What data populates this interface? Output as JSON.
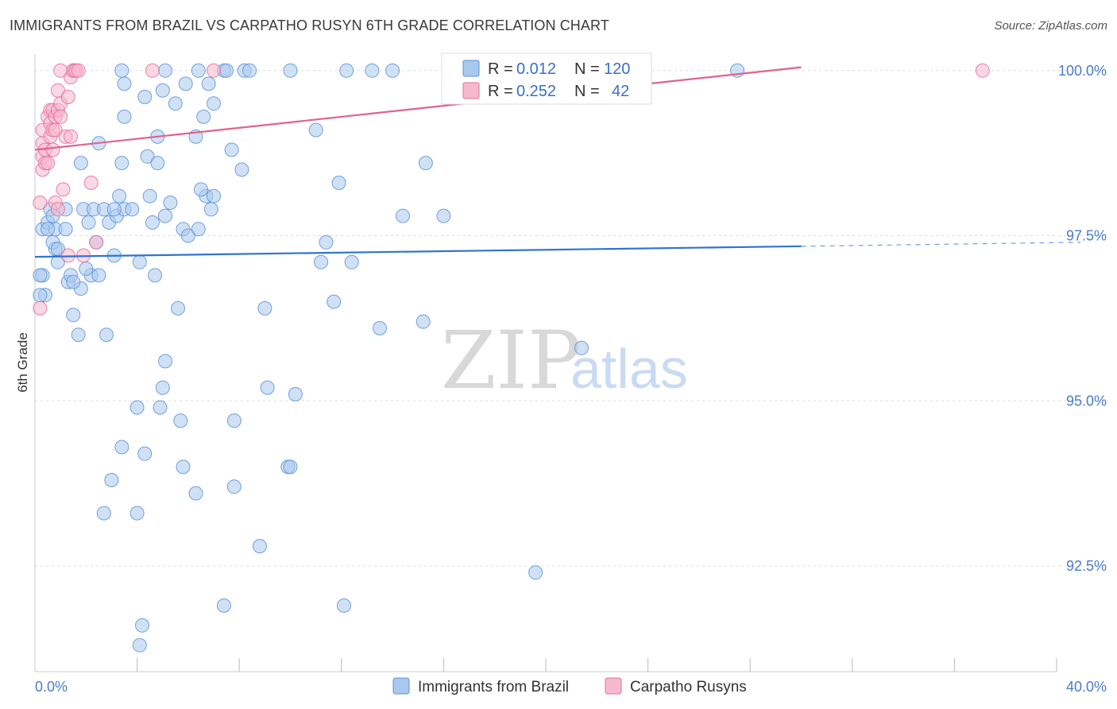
{
  "title": "IMMIGRANTS FROM BRAZIL VS CARPATHO RUSYN 6TH GRADE CORRELATION CHART",
  "source": "Source: ZipAtlas.com",
  "watermark": {
    "zip": "ZIP",
    "atlas": "atlas"
  },
  "colors": {
    "blue": "#5b93d6",
    "blue_fill": "#a9c8ef",
    "pink": "#e46f96",
    "pink_fill": "#f6b8cc",
    "tick": "#4a7cc9"
  },
  "legend": {
    "r_label": "R =",
    "n_label": "N =",
    "rows": [
      {
        "r": "0.012",
        "n": "120"
      },
      {
        "r": "0.252",
        "n": "42"
      }
    ]
  },
  "chart_data": {
    "type": "scatter",
    "title": "IMMIGRANTS FROM BRAZIL VS CARPATHO RUSYN 6TH GRADE CORRELATION CHART",
    "xlabel": "",
    "ylabel": "6th Grade",
    "xlim": [
      0,
      40
    ],
    "ylim": [
      90.9,
      100.25
    ],
    "x_tick_labels": {
      "min": "0.0%",
      "max": "40.0%"
    },
    "y_ticks": [
      {
        "value": 100.0,
        "label": "100.0%"
      },
      {
        "value": 97.5,
        "label": "97.5%"
      },
      {
        "value": 95.0,
        "label": "95.0%"
      },
      {
        "value": 92.5,
        "label": "92.5%"
      }
    ],
    "series": [
      {
        "name": "Immigrants from Brazil",
        "color": "blue",
        "trend": {
          "x0": 0,
          "y0": 97.18,
          "x1": 30,
          "y1": 97.34,
          "dash_to": 40,
          "dash_y": 97.4
        },
        "points": [
          [
            0.3,
            96.9
          ],
          [
            0.4,
            96.6
          ],
          [
            0.3,
            97.6
          ],
          [
            0.5,
            97.7
          ],
          [
            0.6,
            97.9
          ],
          [
            0.7,
            97.8
          ],
          [
            0.8,
            97.6
          ],
          [
            0.8,
            97.3
          ],
          [
            0.9,
            97.1
          ],
          [
            1.3,
            96.8
          ],
          [
            1.4,
            96.9
          ],
          [
            1.5,
            96.3
          ],
          [
            1.7,
            96.0
          ],
          [
            1.8,
            96.7
          ],
          [
            1.9,
            97.9
          ],
          [
            2.1,
            97.7
          ],
          [
            2.2,
            96.9
          ],
          [
            2.3,
            97.9
          ],
          [
            2.4,
            97.4
          ],
          [
            2.5,
            96.9
          ],
          [
            1.8,
            98.6
          ],
          [
            2.5,
            98.9
          ],
          [
            2.7,
            97.9
          ],
          [
            2.8,
            96.0
          ],
          [
            2.9,
            97.7
          ],
          [
            3.1,
            97.2
          ],
          [
            3.2,
            97.8
          ],
          [
            3.3,
            98.1
          ],
          [
            3.4,
            98.6
          ],
          [
            3.5,
            99.3
          ],
          [
            3.5,
            97.9
          ],
          [
            3.8,
            97.9
          ],
          [
            4.1,
            97.1
          ],
          [
            4.3,
            99.6
          ],
          [
            4.4,
            98.7
          ],
          [
            4.5,
            98.1
          ],
          [
            4.6,
            97.7
          ],
          [
            4.7,
            96.9
          ],
          [
            4.8,
            98.6
          ],
          [
            4.8,
            99.0
          ],
          [
            5.1,
            97.8
          ],
          [
            5.3,
            98.0
          ],
          [
            5.5,
            99.5
          ],
          [
            5.6,
            96.4
          ],
          [
            5.8,
            97.6
          ],
          [
            5.9,
            99.8
          ],
          [
            6.0,
            97.5
          ],
          [
            6.3,
            99.0
          ],
          [
            6.4,
            97.6
          ],
          [
            6.7,
            98.1
          ],
          [
            6.8,
            99.8
          ],
          [
            6.9,
            97.9
          ],
          [
            7.0,
            99.5
          ],
          [
            7.0,
            98.1
          ],
          [
            6.6,
            99.3
          ],
          [
            7.7,
            98.8
          ],
          [
            8.1,
            98.5
          ],
          [
            9.0,
            96.4
          ],
          [
            11.0,
            99.1
          ],
          [
            11.2,
            97.1
          ],
          [
            11.4,
            97.4
          ],
          [
            11.9,
            98.3
          ],
          [
            11.7,
            96.5
          ],
          [
            12.4,
            97.1
          ],
          [
            13.5,
            96.1
          ],
          [
            14.4,
            97.8
          ],
          [
            15.3,
            98.6
          ],
          [
            16.0,
            97.8
          ],
          [
            15.2,
            96.2
          ],
          [
            21.4,
            95.8
          ],
          [
            3.4,
            100.0
          ],
          [
            5.1,
            100.0
          ],
          [
            6.4,
            100.0
          ],
          [
            7.4,
            100.0
          ],
          [
            7.5,
            100.0
          ],
          [
            8.2,
            100.0
          ],
          [
            8.4,
            100.0
          ],
          [
            10.0,
            100.0
          ],
          [
            12.2,
            100.0
          ],
          [
            13.2,
            100.0
          ],
          [
            14.0,
            100.0
          ],
          [
            27.5,
            100.0
          ],
          [
            3.5,
            99.8
          ],
          [
            5.0,
            99.7
          ],
          [
            16.3,
            100.0
          ],
          [
            5.1,
            95.6
          ],
          [
            5.0,
            95.2
          ],
          [
            4.0,
            94.9
          ],
          [
            4.9,
            94.9
          ],
          [
            5.7,
            94.7
          ],
          [
            7.8,
            94.7
          ],
          [
            9.1,
            95.2
          ],
          [
            10.2,
            95.1
          ],
          [
            3.4,
            94.3
          ],
          [
            4.3,
            94.2
          ],
          [
            3.0,
            93.8
          ],
          [
            5.8,
            94.0
          ],
          [
            6.3,
            93.6
          ],
          [
            7.8,
            93.7
          ],
          [
            9.9,
            94.0
          ],
          [
            10.0,
            94.0
          ],
          [
            2.7,
            93.3
          ],
          [
            4.0,
            93.3
          ],
          [
            8.8,
            92.8
          ],
          [
            19.6,
            92.4
          ],
          [
            7.4,
            91.9
          ],
          [
            12.1,
            91.9
          ],
          [
            4.2,
            91.6
          ],
          [
            4.1,
            91.3
          ],
          [
            0.2,
            96.9
          ],
          [
            0.2,
            96.6
          ],
          [
            0.5,
            97.6
          ],
          [
            0.7,
            97.4
          ],
          [
            1.2,
            97.6
          ],
          [
            0.9,
            97.3
          ],
          [
            1.5,
            96.8
          ],
          [
            1.2,
            97.9
          ],
          [
            2.0,
            97.0
          ],
          [
            3.1,
            97.9
          ],
          [
            6.5,
            98.2
          ]
        ]
      },
      {
        "name": "Carpatho Rusyns",
        "color": "pink",
        "trend": {
          "x0": 0,
          "y0": 98.8,
          "x1": 30,
          "y1": 100.05
        },
        "points": [
          [
            0.2,
            96.4
          ],
          [
            0.2,
            98.0
          ],
          [
            0.3,
            98.5
          ],
          [
            0.3,
            98.7
          ],
          [
            0.3,
            98.9
          ],
          [
            0.3,
            99.1
          ],
          [
            0.4,
            98.6
          ],
          [
            0.4,
            98.8
          ],
          [
            0.5,
            99.3
          ],
          [
            0.6,
            99.0
          ],
          [
            0.6,
            99.2
          ],
          [
            0.6,
            99.4
          ],
          [
            0.7,
            98.8
          ],
          [
            0.7,
            99.1
          ],
          [
            0.7,
            99.4
          ],
          [
            0.8,
            98.0
          ],
          [
            0.8,
            99.3
          ],
          [
            0.8,
            99.1
          ],
          [
            0.9,
            99.7
          ],
          [
            0.9,
            99.4
          ],
          [
            1.0,
            99.5
          ],
          [
            1.0,
            99.3
          ],
          [
            1.1,
            98.2
          ],
          [
            1.2,
            99.0
          ],
          [
            1.3,
            99.6
          ],
          [
            1.4,
            99.0
          ],
          [
            1.4,
            99.9
          ],
          [
            1.5,
            100.0
          ],
          [
            1.5,
            100.0
          ],
          [
            1.6,
            100.0
          ],
          [
            1.6,
            100.0
          ],
          [
            1.7,
            100.0
          ],
          [
            0.9,
            97.9
          ],
          [
            1.3,
            97.2
          ],
          [
            1.9,
            97.2
          ],
          [
            2.2,
            98.3
          ],
          [
            2.4,
            97.4
          ],
          [
            1.0,
            100.0
          ],
          [
            4.6,
            100.0
          ],
          [
            7.0,
            100.0
          ],
          [
            37.1,
            100.0
          ],
          [
            0.5,
            98.6
          ]
        ]
      }
    ]
  },
  "bottom_legend": [
    {
      "label": "Immigrants from Brazil"
    },
    {
      "label": "Carpatho Rusyns"
    }
  ]
}
